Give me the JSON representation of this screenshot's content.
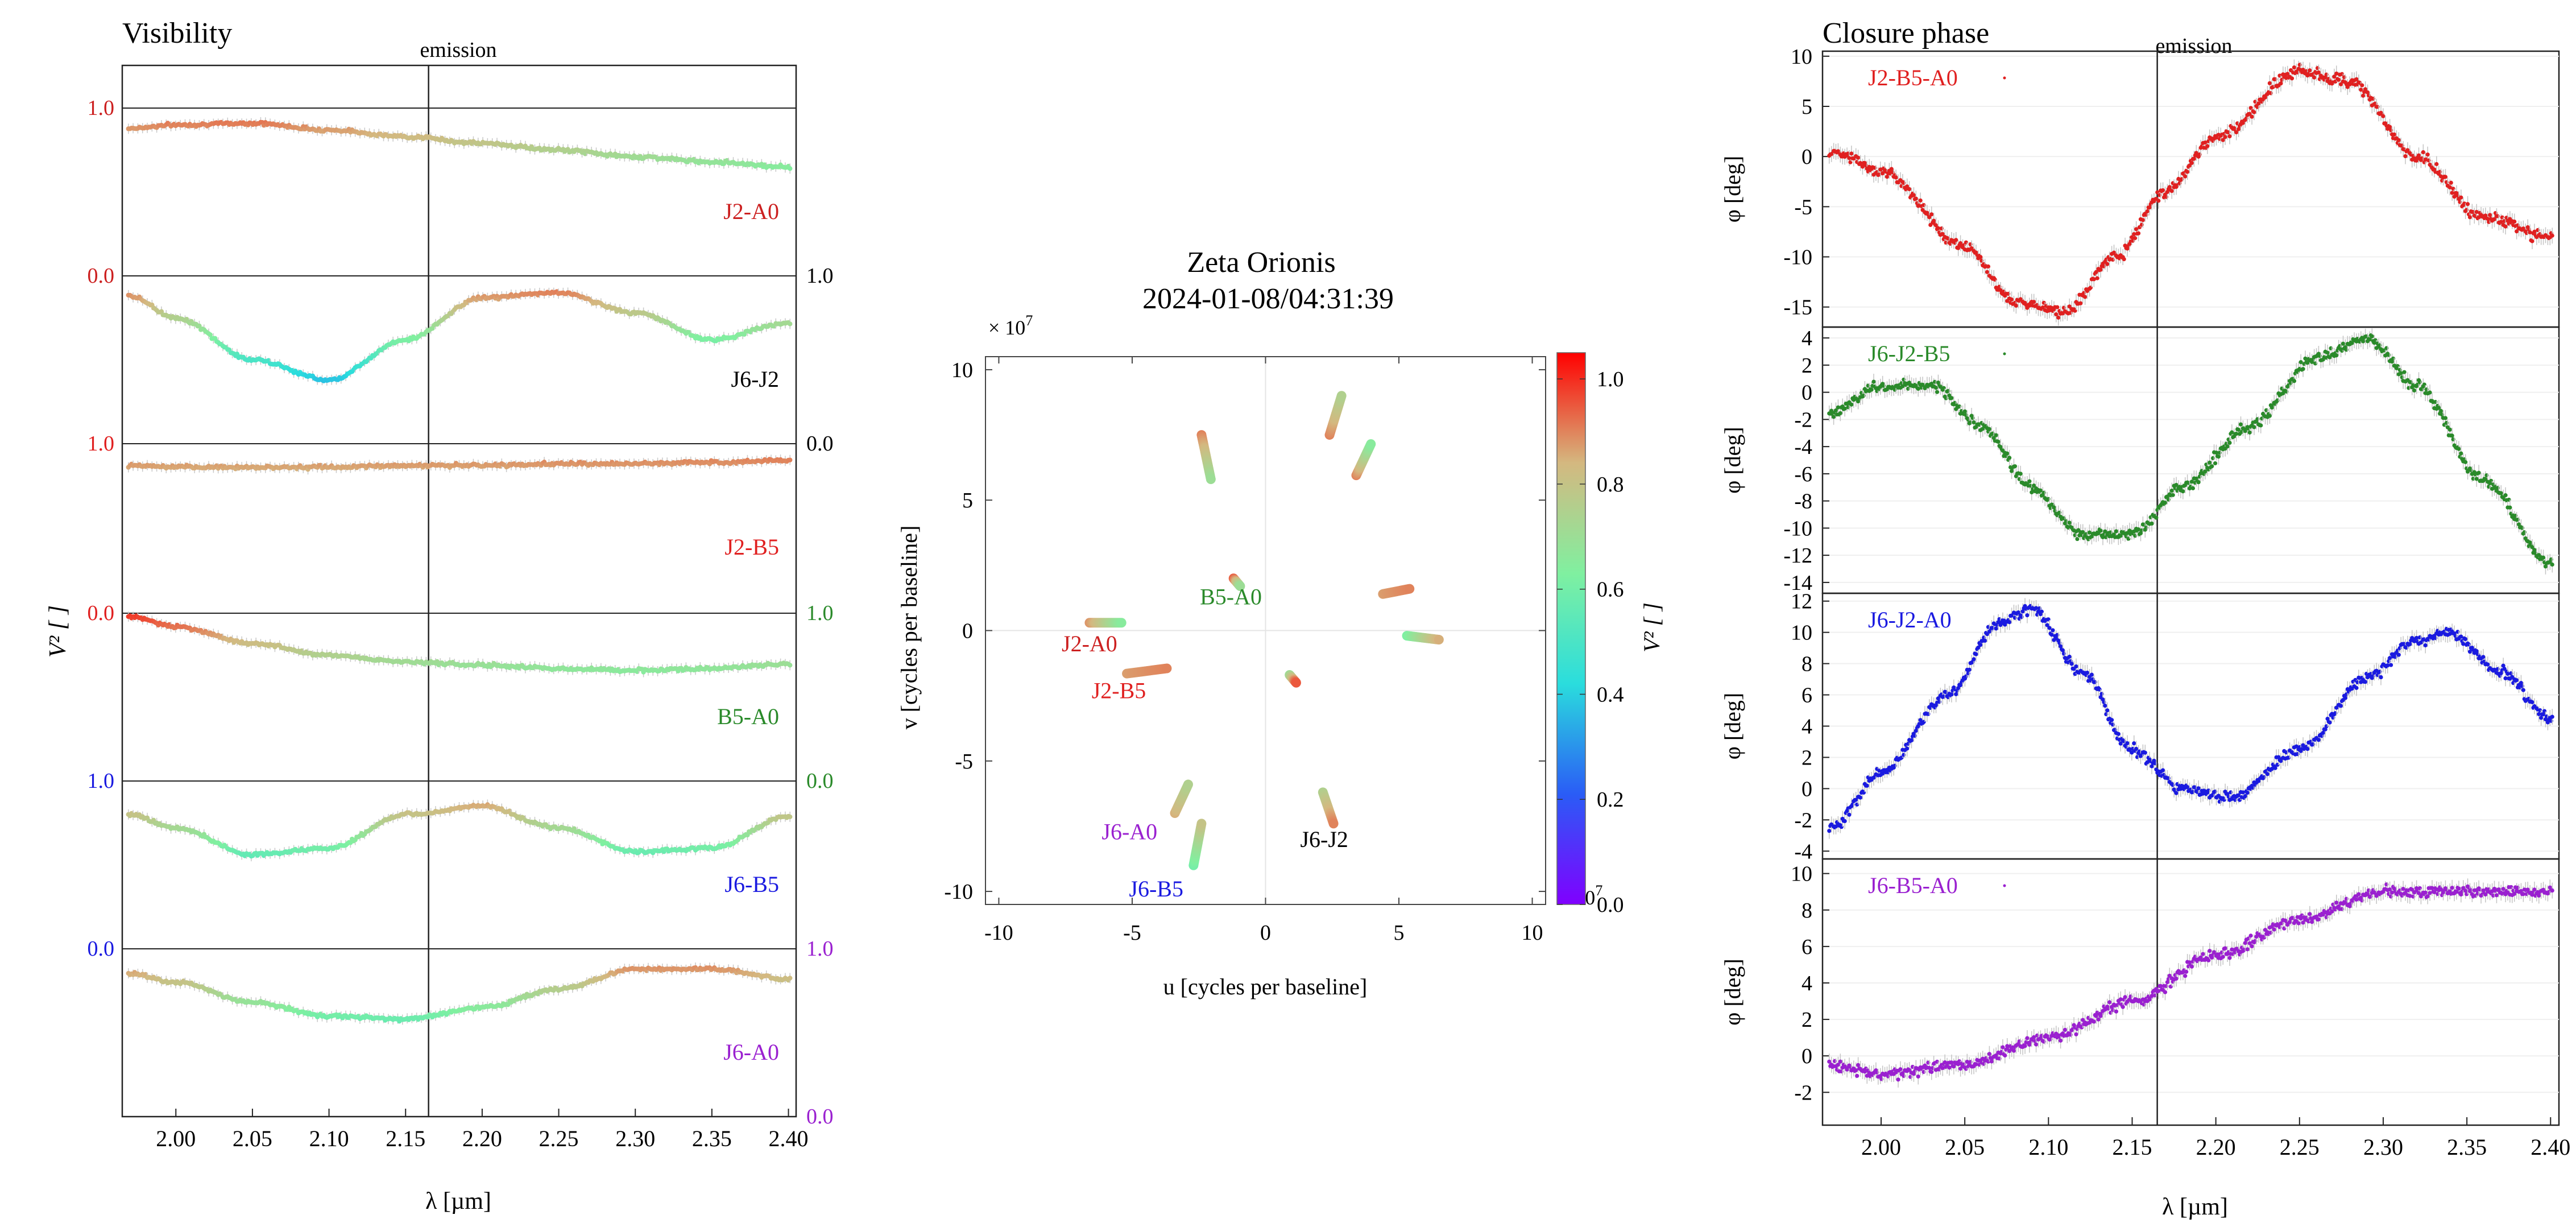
{
  "figure": {
    "emission_label": "emission",
    "emission_wavelength": 2.165
  },
  "chart_data": [
    {
      "type": "scatter",
      "panel": "visibility",
      "title": "Visibility",
      "xlabel": "λ [µm]",
      "ylabel": "V² [ ]",
      "xlim": [
        1.965,
        2.405
      ],
      "xticks": [
        "2.00",
        "2.05",
        "2.10",
        "2.15",
        "2.20",
        "2.25",
        "2.30",
        "2.35",
        "2.40"
      ],
      "ylim_each_series": [
        0.0,
        1.0
      ],
      "tick_labels": [
        {
          "text": "1.0",
          "color": "#cc2020",
          "side": "left"
        },
        {
          "text": "0.0",
          "color": "#cc2020",
          "side": "left"
        },
        {
          "text": "1.0",
          "color": "#000000",
          "side": "right"
        },
        {
          "text": "1.0",
          "color": "#e02020",
          "side": "left"
        },
        {
          "text": "0.0",
          "color": "#000000",
          "side": "right"
        },
        {
          "text": "0.0",
          "color": "#e02020",
          "side": "left"
        },
        {
          "text": "1.0",
          "color": "#2a8a2a",
          "side": "right"
        },
        {
          "text": "1.0",
          "color": "#1a1ae0",
          "side": "left"
        },
        {
          "text": "0.0",
          "color": "#2a8a2a",
          "side": "right"
        },
        {
          "text": "0.0",
          "color": "#1a1ae0",
          "side": "left"
        },
        {
          "text": "1.0",
          "color": "#9a20d0",
          "side": "right"
        },
        {
          "text": "0.0",
          "color": "#9a20d0",
          "side": "right"
        }
      ],
      "series": [
        {
          "name": "J2-A0",
          "color": "#cc2020",
          "x": [
            1.97,
            2.0,
            2.05,
            2.1,
            2.15,
            2.2,
            2.25,
            2.3,
            2.35,
            2.4
          ],
          "values": [
            0.88,
            0.9,
            0.91,
            0.87,
            0.83,
            0.79,
            0.75,
            0.71,
            0.68,
            0.65
          ]
        },
        {
          "name": "J6-J2",
          "color": "#000000",
          "x": [
            1.97,
            2.0,
            2.05,
            2.1,
            2.15,
            2.2,
            2.25,
            2.3,
            2.35,
            2.4
          ],
          "values": [
            0.88,
            0.75,
            0.5,
            0.38,
            0.62,
            0.87,
            0.9,
            0.78,
            0.62,
            0.72
          ]
        },
        {
          "name": "J2-B5",
          "color": "#e02020",
          "x": [
            1.97,
            2.0,
            2.05,
            2.1,
            2.15,
            2.2,
            2.25,
            2.3,
            2.35,
            2.4
          ],
          "values": [
            0.87,
            0.86,
            0.86,
            0.86,
            0.87,
            0.87,
            0.88,
            0.88,
            0.89,
            0.9
          ]
        },
        {
          "name": "B5-A0",
          "color": "#2a8a2a",
          "x": [
            1.97,
            2.0,
            2.05,
            2.1,
            2.15,
            2.2,
            2.25,
            2.3,
            2.35,
            2.4
          ],
          "values": [
            0.98,
            0.92,
            0.82,
            0.75,
            0.71,
            0.69,
            0.67,
            0.66,
            0.67,
            0.7
          ]
        },
        {
          "name": "J6-B5",
          "color": "#1a1ae0",
          "x": [
            1.97,
            2.0,
            2.05,
            2.1,
            2.15,
            2.2,
            2.25,
            2.3,
            2.35,
            2.4
          ],
          "values": [
            0.8,
            0.72,
            0.56,
            0.6,
            0.8,
            0.85,
            0.72,
            0.58,
            0.6,
            0.79
          ]
        },
        {
          "name": "J6-A0",
          "color": "#9a20d0",
          "x": [
            1.97,
            2.0,
            2.05,
            2.1,
            2.15,
            2.2,
            2.25,
            2.3,
            2.35,
            2.4
          ],
          "values": [
            0.85,
            0.8,
            0.68,
            0.6,
            0.58,
            0.65,
            0.76,
            0.88,
            0.88,
            0.82
          ]
        }
      ]
    },
    {
      "type": "scatter",
      "panel": "uv-coverage",
      "title": "Zeta Orionis",
      "subtitle": "2024-01-08/04:31:39",
      "xlabel": "u [cycles per baseline]",
      "ylabel": "v [cycles per baseline]",
      "scale_label": "× 10",
      "scale_exponent": "7",
      "xlim": [
        -10.5,
        10.5
      ],
      "ylim": [
        -10.5,
        10.5
      ],
      "xticks": [
        "-10",
        "-5",
        "0",
        "5",
        "10"
      ],
      "yticks": [
        "-10",
        "-5",
        "0",
        "5",
        "10"
      ],
      "colorbar": {
        "label": "V² [ ]",
        "ticks": [
          "0.0",
          "0.2",
          "0.4",
          "0.6",
          "0.8",
          "1.0"
        ],
        "range": [
          0.0,
          1.05
        ],
        "colormap": "rainbow"
      },
      "tracks": [
        {
          "x": [
            -6.6,
            -5.4
          ],
          "y": [
            0.3,
            0.3
          ],
          "v2": [
            0.88,
            0.65
          ]
        },
        {
          "x": [
            -5.2,
            -3.7
          ],
          "y": [
            -1.65,
            -1.45
          ],
          "v2": [
            0.87,
            0.9
          ]
        },
        {
          "x": [
            -2.4,
            -2.05
          ],
          "y": [
            7.5,
            5.8
          ],
          "v2": [
            0.9,
            0.7
          ]
        },
        {
          "x": [
            -1.2,
            -0.95
          ],
          "y": [
            2.0,
            1.7
          ],
          "v2": [
            0.95,
            0.7
          ]
        },
        {
          "x": [
            2.4,
            2.85
          ],
          "y": [
            7.5,
            9.0
          ],
          "v2": [
            0.9,
            0.75
          ]
        },
        {
          "x": [
            3.4,
            3.95
          ],
          "y": [
            5.95,
            7.15
          ],
          "v2": [
            0.9,
            0.65
          ]
        },
        {
          "x": [
            4.4,
            5.4
          ],
          "y": [
            1.4,
            1.6
          ],
          "v2": [
            0.87,
            0.9
          ]
        },
        {
          "x": [
            5.3,
            6.5
          ],
          "y": [
            -0.2,
            -0.35
          ],
          "v2": [
            0.62,
            0.85
          ]
        },
        {
          "x": [
            0.9,
            1.15
          ],
          "y": [
            -1.7,
            -2.0
          ],
          "v2": [
            0.7,
            0.95
          ]
        },
        {
          "x": [
            2.15,
            2.55
          ],
          "y": [
            -6.2,
            -7.4
          ],
          "v2": [
            0.75,
            0.9
          ]
        },
        {
          "x": [
            -3.4,
            -2.9
          ],
          "y": [
            -7.0,
            -5.9
          ],
          "v2": [
            0.85,
            0.75
          ]
        },
        {
          "x": [
            -2.7,
            -2.4
          ],
          "y": [
            -9.0,
            -7.4
          ],
          "v2": [
            0.6,
            0.8
          ]
        }
      ],
      "baseline_labels": [
        {
          "text": "B5-A0",
          "color": "#2a8a2a",
          "u": -1.3,
          "v": 1.0
        },
        {
          "text": "J2-A0",
          "color": "#cc2020",
          "u": -6.6,
          "v": -0.8
        },
        {
          "text": "J2-B5",
          "color": "#e02020",
          "u": -5.5,
          "v": -2.6
        },
        {
          "text": "J6-A0",
          "color": "#9a20d0",
          "u": -5.1,
          "v": -8.0
        },
        {
          "text": "J6-B5",
          "color": "#1a1ae0",
          "u": -4.1,
          "v": -10.2
        },
        {
          "text": "J6-J2",
          "color": "#000000",
          "u": 2.2,
          "v": -8.3
        }
      ]
    },
    {
      "type": "scatter",
      "panel": "closure-phase",
      "title": "Closure phase",
      "xlabel": "λ [µm]",
      "xlim": [
        1.965,
        2.405
      ],
      "xticks": [
        "2.00",
        "2.05",
        "2.10",
        "2.15",
        "2.20",
        "2.25",
        "2.30",
        "2.35",
        "2.40"
      ],
      "series": [
        {
          "name": "J2-B5-A0",
          "color": "#e02020",
          "ylabel": "φ [deg]",
          "ylim": [
            -17,
            10.5
          ],
          "yticks": [
            "10",
            "5",
            "0",
            "-5",
            "-10",
            "-15"
          ],
          "x": [
            1.97,
            2.0,
            2.05,
            2.08,
            2.11,
            2.14,
            2.17,
            2.2,
            2.25,
            2.28,
            2.32,
            2.36,
            2.4
          ],
          "values": [
            0.5,
            -1.5,
            -9.0,
            -14.5,
            -15.5,
            -10.0,
            -3.5,
            2.0,
            8.5,
            7.5,
            0.0,
            -6.0,
            -8.0
          ]
        },
        {
          "name": "J6-J2-B5",
          "color": "#2a8a2a",
          "ylabel": "φ [deg]",
          "ylim": [
            -14.8,
            4.8
          ],
          "yticks": [
            "4",
            "2",
            "0",
            "-2",
            "-4",
            "-6",
            "-8",
            "-10",
            "-12",
            "-14"
          ],
          "x": [
            1.97,
            2.0,
            2.03,
            2.06,
            2.09,
            2.12,
            2.15,
            2.18,
            2.22,
            2.26,
            2.29,
            2.32,
            2.36,
            2.4
          ],
          "values": [
            -1.5,
            0.5,
            0.5,
            -2.5,
            -7.0,
            -10.5,
            -10.5,
            -7.0,
            -2.5,
            2.5,
            4.0,
            0.5,
            -6.5,
            -12.5
          ]
        },
        {
          "name": "J6-J2-A0",
          "color": "#1a1ae0",
          "ylabel": "φ [deg]",
          "ylim": [
            -4.5,
            12.5
          ],
          "yticks": [
            "12",
            "10",
            "8",
            "6",
            "4",
            "2",
            "0",
            "-2",
            "-4"
          ],
          "x": [
            1.97,
            2.0,
            2.04,
            2.07,
            2.09,
            2.12,
            2.15,
            2.18,
            2.21,
            2.25,
            2.29,
            2.32,
            2.34,
            2.37,
            2.4
          ],
          "values": [
            -2.5,
            1.0,
            6.0,
            10.5,
            11.5,
            7.5,
            2.5,
            0.0,
            -0.5,
            2.5,
            7.0,
            9.5,
            10.0,
            7.5,
            4.5
          ]
        },
        {
          "name": "J6-B5-A0",
          "color": "#9a20d0",
          "ylabel": "φ [deg]",
          "ylim": [
            -3.8,
            10.8
          ],
          "yticks": [
            "10",
            "8",
            "6",
            "4",
            "2",
            "0",
            "-2"
          ],
          "x": [
            1.97,
            2.0,
            2.05,
            2.1,
            2.15,
            2.2,
            2.25,
            2.3,
            2.35,
            2.4
          ],
          "values": [
            -0.5,
            -1.0,
            -0.5,
            1.0,
            3.0,
            5.5,
            7.5,
            9.0,
            9.0,
            9.0
          ]
        }
      ]
    }
  ]
}
